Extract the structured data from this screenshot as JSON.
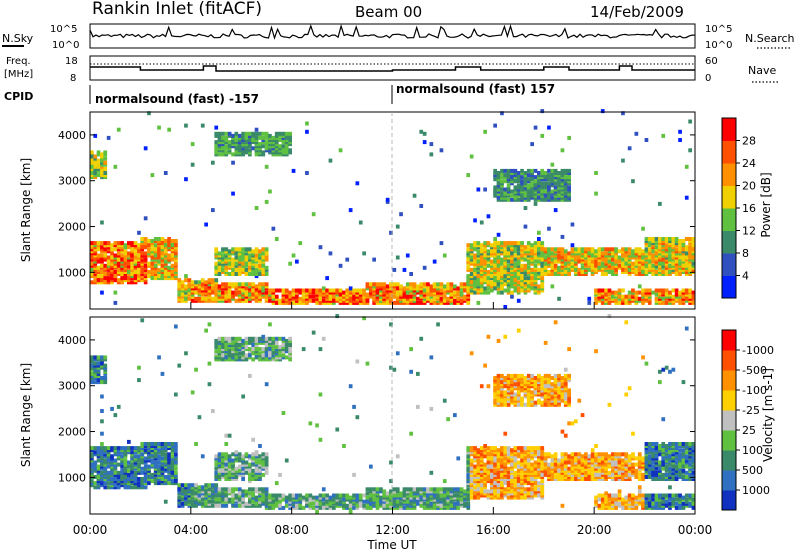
{
  "header": {
    "station": "Rankin Inlet (fitACF)",
    "beam": "Beam 00",
    "date": "14/Feb/2009"
  },
  "noise_panel": {
    "left_label": "N.Sky",
    "right_label": "N.Search",
    "left_ticks": [
      "10^5",
      "10^0"
    ],
    "right_ticks": [
      "10^5",
      "10^0"
    ]
  },
  "freq_panel": {
    "left_label_line1": "Freq.",
    "left_label_line2": "[MHz]",
    "right_label": "Nave",
    "left_ticks": [
      "18",
      "8"
    ],
    "right_ticks": [
      "60",
      "0"
    ]
  },
  "cpid": {
    "label": "CPID",
    "segments": [
      {
        "text": "normalsound (fast) -157",
        "start": 0,
        "end": 12
      },
      {
        "text": "normalsound (fast) 157",
        "start": 12,
        "end": 24
      }
    ]
  },
  "chart_data": [
    {
      "type": "heatmap",
      "name": "power",
      "ylabel": "Slant Range [km]",
      "yticks": [
        1000,
        2000,
        3000,
        4000
      ],
      "ylim": [
        200,
        4500
      ],
      "colorbar": {
        "label": "Power [dB]",
        "ticks": [
          "4",
          "8",
          "12",
          "16",
          "20",
          "24",
          "28"
        ],
        "colors": [
          "#0020ff",
          "#3050c0",
          "#3a8a6a",
          "#60c040",
          "#f0d000",
          "#ff9000",
          "#ff5000",
          "#ff0000"
        ]
      }
    },
    {
      "type": "heatmap",
      "name": "velocity",
      "ylabel": "Slant Range [km]",
      "yticks": [
        1000,
        2000,
        3000,
        4000
      ],
      "ylim": [
        200,
        4500
      ],
      "colorbar": {
        "label": "Velocity [m s-1]",
        "ticks": [
          "1000",
          "500",
          "100",
          "25",
          "-25",
          "-100",
          "-500",
          "-1000"
        ],
        "colors": [
          "#1030c0",
          "#3070c0",
          "#3a8a6a",
          "#60c040",
          "#c0c0c0",
          "#ffd000",
          "#ff9000",
          "#ff5000",
          "#ff0000"
        ]
      }
    }
  ],
  "time_axis": {
    "label": "Time UT",
    "ticks": [
      "00:00",
      "04:00",
      "08:00",
      "12:00",
      "16:00",
      "20:00",
      "00:00"
    ]
  }
}
